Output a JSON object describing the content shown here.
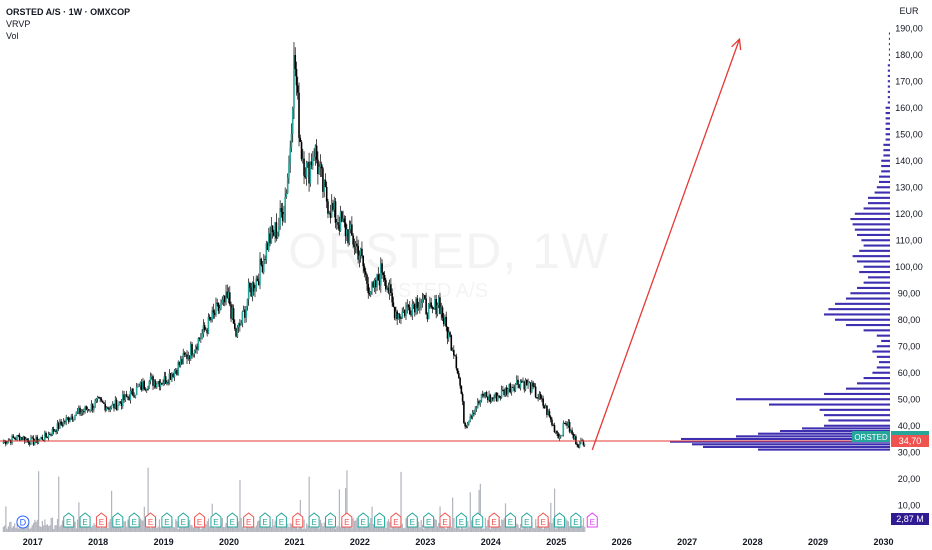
{
  "legend": {
    "symbol": "ORSTED A/S · 1W · OMXCOP",
    "indicator_vrvp": "VRVP",
    "indicator_vol": "Vol"
  },
  "watermark": {
    "ticker": "ORSTED, 1W",
    "company": "ORSTED A/S"
  },
  "axis": {
    "currency": "EUR",
    "price_ticks": [
      "10,00",
      "20,00",
      "30,00",
      "40,00",
      "50,00",
      "60,00",
      "70,00",
      "80,00",
      "90,00",
      "100,00",
      "110,00",
      "120,00",
      "130,00",
      "140,00",
      "150,00",
      "160,00",
      "170,00",
      "180,00",
      "190,00"
    ],
    "year_ticks": [
      "2017",
      "2018",
      "2019",
      "2020",
      "2021",
      "2022",
      "2023",
      "2024",
      "2025",
      "2026",
      "2027",
      "2028",
      "2029",
      "2030"
    ]
  },
  "labels": {
    "ticker_tag": "ORSTED",
    "last_price": "34,70",
    "volume_tag": "2,87 M"
  },
  "event_markers": {
    "dividend": "D",
    "earnings": "E"
  },
  "colors": {
    "up": "#26a69a",
    "down": "#ef5350",
    "candle": "#000000",
    "vrvp": "#3d2fb0",
    "arrow": "#e53935",
    "support_line": "#e53935",
    "volume_bar": "#b2b5be",
    "volume_tag_bg": "#311b92"
  },
  "chart_data": {
    "type": "line",
    "title": "ORSTED A/S · 1W · OMXCOP",
    "xlabel": "",
    "ylabel": "EUR",
    "ylim": [
      0,
      190
    ],
    "x_range": [
      2016.5,
      2030.1
    ],
    "series": [
      {
        "name": "ORSTED",
        "x": [
          2016.55,
          2016.8,
          2017.0,
          2017.2,
          2017.4,
          2017.6,
          2017.8,
          2018.0,
          2018.2,
          2018.4,
          2018.6,
          2018.8,
          2019.0,
          2019.2,
          2019.4,
          2019.6,
          2019.8,
          2020.0,
          2020.1,
          2020.2,
          2020.3,
          2020.45,
          2020.6,
          2020.75,
          2020.85,
          2020.92,
          2021.0,
          2021.05,
          2021.1,
          2021.2,
          2021.3,
          2021.45,
          2021.6,
          2021.75,
          2021.9,
          2022.0,
          2022.1,
          2022.2,
          2022.35,
          2022.5,
          2022.6,
          2022.75,
          2022.9,
          2023.0,
          2023.1,
          2023.2,
          2023.3,
          2023.45,
          2023.55,
          2023.6,
          2023.7,
          2023.8,
          2023.9,
          2024.0,
          2024.15,
          2024.3,
          2024.45,
          2024.6,
          2024.75,
          2024.85,
          2024.95,
          2025.05,
          2025.15,
          2025.25,
          2025.35,
          2025.45
        ],
        "values": [
          34,
          36,
          34,
          36,
          40,
          44,
          46,
          49,
          47,
          50,
          54,
          57,
          57,
          62,
          68,
          75,
          83,
          88,
          74,
          80,
          90,
          97,
          110,
          115,
          125,
          140,
          180,
          160,
          145,
          135,
          145,
          128,
          120,
          115,
          110,
          105,
          95,
          90,
          100,
          85,
          82,
          85,
          88,
          85,
          82,
          88,
          78,
          68,
          52,
          40,
          45,
          48,
          52,
          50,
          52,
          55,
          57,
          55,
          50,
          46,
          40,
          36,
          42,
          36,
          33,
          35
        ]
      }
    ],
    "projection": {
      "from": [
        2025.55,
        31
      ],
      "to": [
        2027.8,
        186
      ]
    },
    "support_level": 34.7,
    "volume_profile": {
      "price_levels": [
        31,
        32,
        33,
        34,
        35,
        36,
        37,
        38,
        39,
        40,
        42,
        44,
        46,
        48,
        50,
        52,
        54,
        56,
        58,
        60,
        62,
        64,
        66,
        68,
        70,
        72,
        74,
        76,
        78,
        80,
        82,
        84,
        86,
        88,
        90,
        92,
        94,
        96,
        98,
        100,
        102,
        104,
        106,
        108,
        110,
        112,
        114,
        116,
        118,
        120,
        122,
        124,
        126,
        128,
        130,
        132,
        134,
        136,
        138,
        140,
        142,
        144,
        146,
        148,
        150,
        152,
        154,
        156,
        158,
        160,
        162,
        164,
        166,
        168,
        170,
        172,
        174,
        176,
        178,
        180,
        182,
        184,
        186,
        188
      ],
      "volumes": [
        0.6,
        0.85,
        0.9,
        1.0,
        0.95,
        0.7,
        0.6,
        0.5,
        0.4,
        0.3,
        0.28,
        0.3,
        0.32,
        0.55,
        0.7,
        0.3,
        0.2,
        0.15,
        0.12,
        0.08,
        0.06,
        0.05,
        0.06,
        0.08,
        0.06,
        0.04,
        0.06,
        0.12,
        0.2,
        0.25,
        0.3,
        0.28,
        0.25,
        0.2,
        0.18,
        0.15,
        0.12,
        0.1,
        0.14,
        0.12,
        0.15,
        0.17,
        0.14,
        0.12,
        0.13,
        0.15,
        0.16,
        0.17,
        0.18,
        0.16,
        0.12,
        0.1,
        0.1,
        0.07,
        0.06,
        0.05,
        0.05,
        0.04,
        0.04,
        0.04,
        0.03,
        0.03,
        0.03,
        0.02,
        0.02,
        0.02,
        0.02,
        0.02,
        0.02,
        0.02,
        0.01,
        0.01,
        0.01,
        0.01,
        0.01,
        0.01,
        0.01,
        0.01,
        0.005,
        0.005,
        0.005,
        0.005,
        0.005,
        0.005
      ]
    },
    "volume_last": "2,87 M",
    "grid": false,
    "legend": "top-left"
  }
}
